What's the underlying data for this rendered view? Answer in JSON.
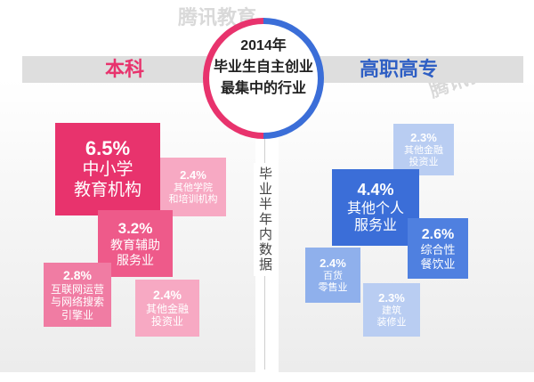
{
  "title": {
    "line1": "2014年",
    "line2": "毕业生自主创业",
    "line3": "最集中的行业"
  },
  "left_header": "本科",
  "right_header": "高职高专",
  "center_vertical_label": "毕业半年内数据",
  "watermark": "腾讯教育",
  "colors": {
    "pink_dark": "#e8336d",
    "pink_light": "#f7a9c3",
    "blue_dark": "#3b6ed8",
    "blue_mid": "#6f9ae6",
    "blue_light": "#b9cdf2"
  },
  "left_items": [
    {
      "percent": "6.5%",
      "label": "中小学\n教育机构"
    },
    {
      "percent": "2.4%",
      "label": "其他学院\n和培训机构"
    },
    {
      "percent": "3.2%",
      "label": "教育辅助\n服务业"
    },
    {
      "percent": "2.8%",
      "label": "互联网运营\n与网络搜索\n引擎业"
    },
    {
      "percent": "2.4%",
      "label": "其他金融\n投资业"
    }
  ],
  "right_items": [
    {
      "percent": "2.3%",
      "label": "其他金融\n投资业"
    },
    {
      "percent": "4.4%",
      "label": "其他个人\n服务业"
    },
    {
      "percent": "2.6%",
      "label": "综合性\n餐饮业"
    },
    {
      "percent": "2.4%",
      "label": "百货\n零售业"
    },
    {
      "percent": "2.3%",
      "label": "建筑\n装修业"
    }
  ]
}
